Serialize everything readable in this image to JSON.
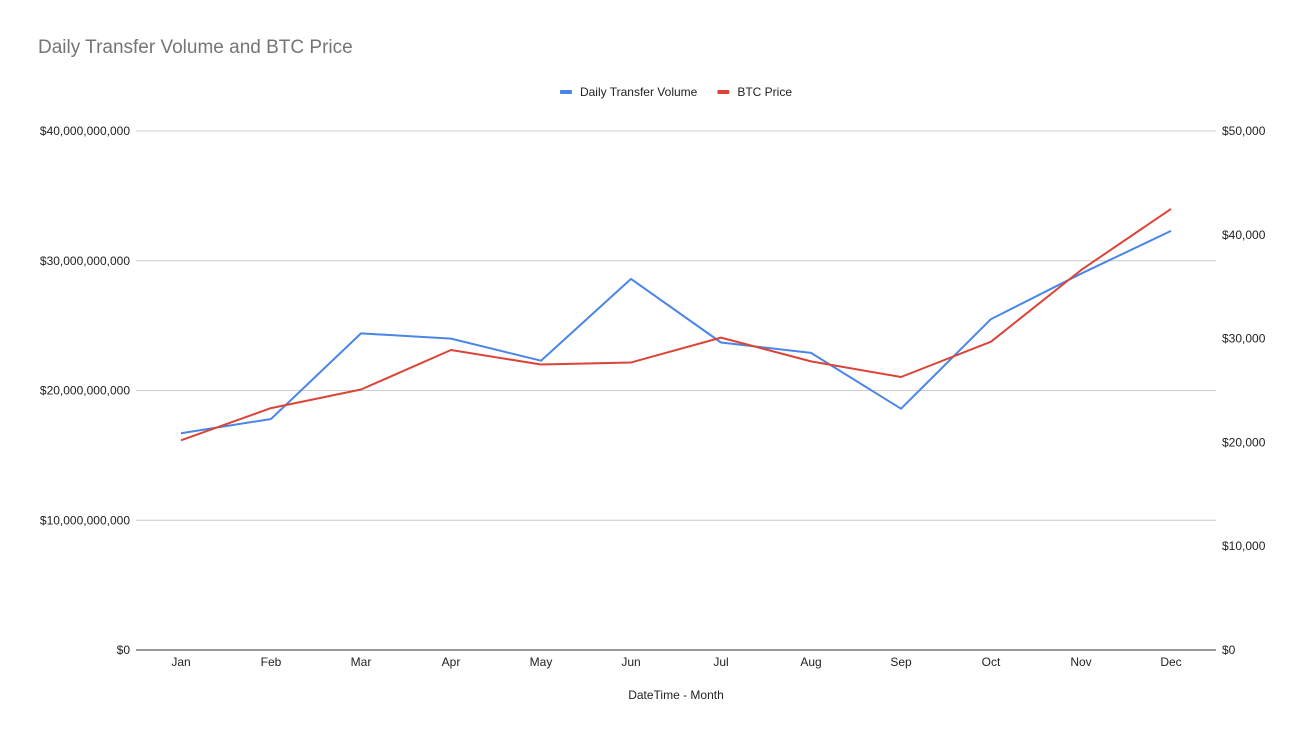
{
  "chart_data": {
    "type": "line",
    "title": "Daily Transfer Volume and BTC Price",
    "xlabel": "DateTime - Month",
    "ylabel": "",
    "y2label": "",
    "categories": [
      "Jan",
      "Feb",
      "Mar",
      "Apr",
      "May",
      "Jun",
      "Jul",
      "Aug",
      "Sep",
      "Oct",
      "Nov",
      "Dec"
    ],
    "series": [
      {
        "name": "Daily Transfer Volume",
        "axis": "left",
        "color": "#4a86e8",
        "values": [
          16700000000,
          17800000000,
          24400000000,
          24000000000,
          22300000000,
          28600000000,
          23700000000,
          22900000000,
          18600000000,
          25500000000,
          29000000000,
          32300000000
        ]
      },
      {
        "name": "BTC Price",
        "axis": "right",
        "color": "#db4437",
        "values": [
          20200,
          23300,
          25100,
          28900,
          27500,
          27700,
          30100,
          27800,
          26300,
          29700,
          36600,
          42500
        ]
      }
    ],
    "ylim": [
      0,
      40000000000
    ],
    "y2lim": [
      0,
      50000
    ],
    "yticks": [
      0,
      10000000000,
      20000000000,
      30000000000,
      40000000000
    ],
    "y2ticks": [
      0,
      10000,
      20000,
      30000,
      40000,
      50000
    ],
    "ytick_labels": [
      "$0",
      "$10,000,000,000",
      "$20,000,000,000",
      "$30,000,000,000",
      "$40,000,000,000"
    ],
    "y2tick_labels": [
      "$0",
      "$10,000",
      "$20,000",
      "$30,000",
      "$40,000",
      "$50,000"
    ],
    "grid": true,
    "legend_position": "top-center"
  }
}
